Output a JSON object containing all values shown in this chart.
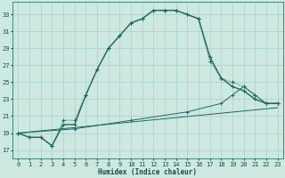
{
  "xlabel": "Humidex (Indice chaleur)",
  "background_color": "#cce8e0",
  "grid_color": "#aacfc8",
  "line_color": "#1a6b5a",
  "xlim": [
    -0.5,
    23.5
  ],
  "ylim": [
    16.0,
    34.5
  ],
  "yticks": [
    17,
    19,
    21,
    23,
    25,
    27,
    29,
    31,
    33
  ],
  "xticks": [
    0,
    1,
    2,
    3,
    4,
    5,
    6,
    7,
    8,
    9,
    10,
    11,
    12,
    13,
    14,
    15,
    16,
    17,
    18,
    19,
    20,
    21,
    22,
    23
  ],
  "line1_x": [
    0,
    1,
    2,
    3,
    4,
    5,
    6,
    7,
    8,
    9,
    10,
    11,
    12,
    13,
    14,
    15,
    16,
    17,
    18,
    19,
    20,
    21,
    22,
    23
  ],
  "line1_y": [
    19.0,
    18.5,
    18.5,
    17.5,
    20.5,
    20.5,
    23.5,
    26.5,
    29.0,
    30.5,
    32.0,
    32.5,
    33.5,
    33.5,
    33.5,
    33.0,
    32.5,
    27.5,
    25.5,
    25.0,
    24.5,
    23.5,
    22.5,
    22.5
  ],
  "line2_x": [
    0,
    1,
    2,
    3,
    4,
    5,
    6,
    7,
    8,
    9,
    10,
    11,
    12,
    13,
    14,
    15,
    16,
    17,
    18,
    19,
    20,
    21,
    22,
    23
  ],
  "line2_y": [
    19.0,
    18.5,
    18.5,
    17.5,
    20.0,
    20.0,
    23.5,
    26.5,
    29.0,
    30.5,
    32.0,
    32.5,
    33.5,
    33.5,
    33.5,
    33.0,
    32.5,
    28.0,
    25.5,
    24.5,
    24.0,
    23.0,
    22.5,
    22.5
  ],
  "line3_x": [
    0,
    5,
    10,
    15,
    18,
    19,
    20,
    21,
    22,
    23
  ],
  "line3_y": [
    19.0,
    19.5,
    20.5,
    21.5,
    22.5,
    23.5,
    24.5,
    23.5,
    22.5,
    22.5
  ],
  "line4_x": [
    0,
    23
  ],
  "line4_y": [
    19.0,
    22.0
  ]
}
